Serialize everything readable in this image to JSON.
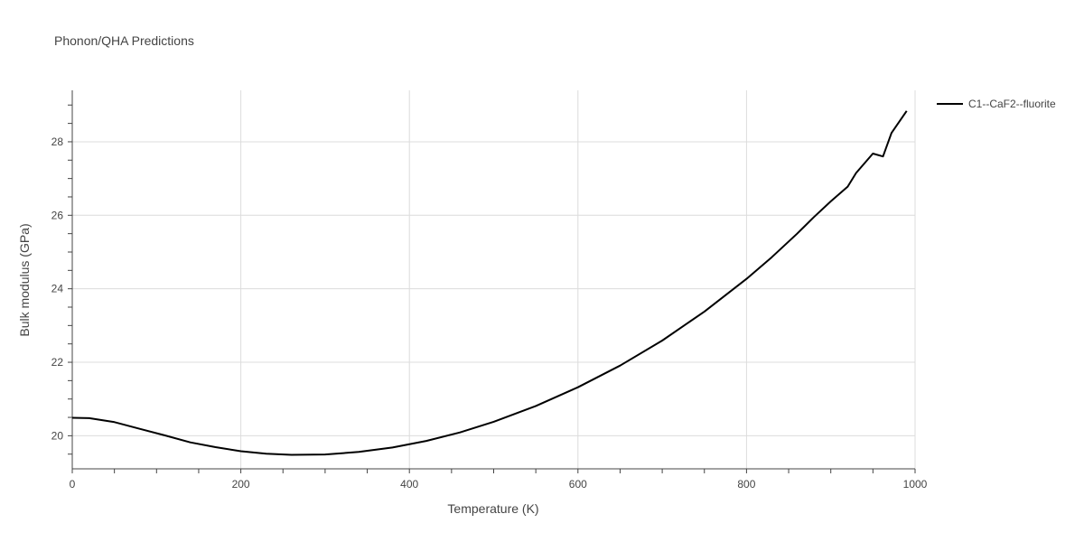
{
  "chart_data": {
    "type": "line",
    "title": "Phonon/QHA Predictions",
    "xlabel": "Temperature (K)",
    "ylabel": "Bulk modulus (GPa)",
    "xlim": [
      0,
      1000
    ],
    "ylim": [
      19.1,
      29.4
    ],
    "xticks": [
      0,
      200,
      400,
      600,
      800,
      1000
    ],
    "yticks": [
      20,
      22,
      24,
      26,
      28
    ],
    "grid": true,
    "legend_position": "top-right",
    "series": [
      {
        "name": "C1--CaF2--fluorite",
        "color": "#000000",
        "x": [
          0,
          20,
          50,
          80,
          110,
          140,
          170,
          200,
          230,
          260,
          300,
          340,
          380,
          420,
          460,
          500,
          550,
          600,
          650,
          700,
          750,
          800,
          830,
          860,
          880,
          900,
          920,
          930,
          950,
          962,
          972,
          990
        ],
        "y": [
          20.49,
          20.48,
          20.37,
          20.19,
          20.01,
          19.82,
          19.69,
          19.58,
          19.51,
          19.48,
          19.49,
          19.56,
          19.68,
          19.86,
          20.09,
          20.38,
          20.81,
          21.32,
          21.91,
          22.59,
          23.38,
          24.27,
          24.86,
          25.5,
          25.95,
          26.38,
          26.78,
          27.15,
          27.68,
          27.6,
          28.24,
          28.84
        ]
      }
    ]
  }
}
